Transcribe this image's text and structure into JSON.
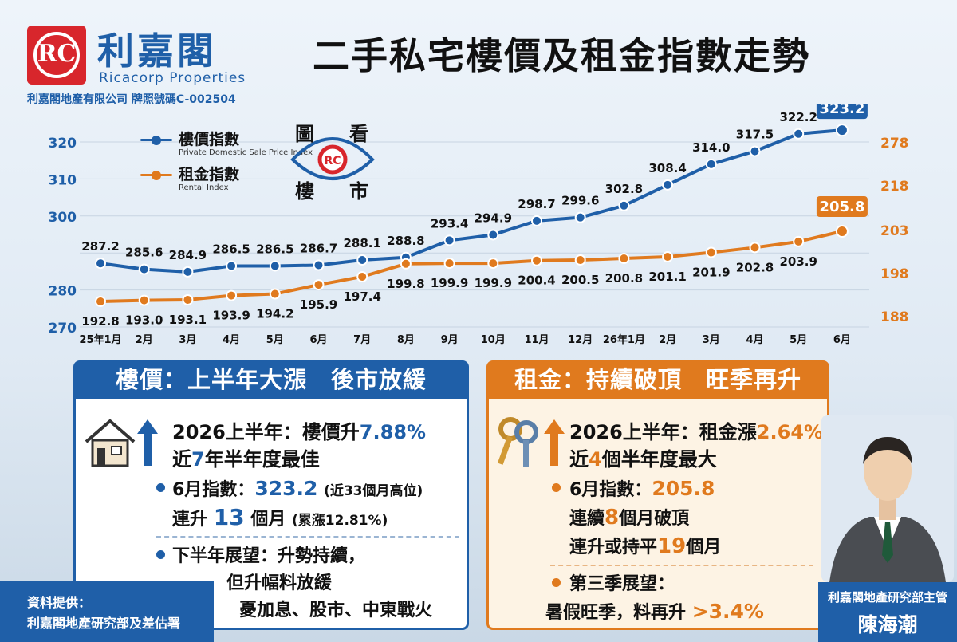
{
  "header": {
    "logo_text": "RC",
    "brand_cn": "利嘉閣",
    "brand_en": "Ricacorp Properties",
    "license": "利嘉閣地產有限公司 牌照號碼C-002504",
    "title": "二手私宅樓價及租金指數走勢"
  },
  "legend": {
    "price_cn": "樓價指數",
    "price_en": "Private Domestic Sale Price Index",
    "rent_cn": "租金指數",
    "rent_en": "Rental Index",
    "eye_chars": [
      "圖",
      "看",
      "樓",
      "市"
    ]
  },
  "colors": {
    "blue": "#1f5fa8",
    "orange": "#e07a1e"
  },
  "chart_data": {
    "type": "line",
    "categories": [
      "25年1月",
      "2月",
      "3月",
      "4月",
      "5月",
      "6月",
      "7月",
      "8月",
      "9月",
      "10月",
      "11月",
      "12月",
      "26年1月",
      "2月",
      "3月",
      "4月",
      "5月",
      "6月"
    ],
    "series": [
      {
        "name": "樓價指數",
        "axis": "left",
        "color": "#1f5fa8",
        "values": [
          287.2,
          285.6,
          284.9,
          286.5,
          286.5,
          286.7,
          288.1,
          288.8,
          293.4,
          294.9,
          298.7,
          299.6,
          302.8,
          308.4,
          314.0,
          317.5,
          322.2,
          323.2
        ]
      },
      {
        "name": "租金指數",
        "axis": "right",
        "color": "#e07a1e",
        "values": [
          192.8,
          193.0,
          193.1,
          193.9,
          194.2,
          195.9,
          197.4,
          199.8,
          199.9,
          199.9,
          200.4,
          200.5,
          200.8,
          201.1,
          201.9,
          202.8,
          203.9,
          205.8
        ]
      }
    ],
    "left_ticks": [
      270,
      280,
      290,
      300,
      310,
      320
    ],
    "left_tick_labels": [
      "270",
      "280",
      "",
      "300",
      "310",
      "320"
    ],
    "right_tick_labels": [
      "188",
      "198",
      "203",
      "218",
      "278"
    ],
    "highlight_last": true
  },
  "price_panel": {
    "header": "樓價：上半年大漲　後市放緩",
    "line1_a": "2026上半年：樓價升",
    "line1_b": "7.88%",
    "line2_a": "近",
    "line2_b": "7",
    "line2_c": "年半年度最佳",
    "b1_l1_a": "6月指數：",
    "b1_l1_b": "323.2",
    "b1_l1_c": "(近33個月高位)",
    "b1_l2_a": "連升",
    "b1_l2_b": "13",
    "b1_l2_c": "個月",
    "b1_l2_d": "(累漲12.81%)",
    "b2_l1": "下半年展望：升勢持續，",
    "b2_l2": "但升幅料放緩",
    "b2_l3": "憂加息、股市、中東戰火"
  },
  "rent_panel": {
    "header": "租金：持續破頂　旺季再升",
    "line1_a": "2026上半年：租金漲",
    "line1_b": "2.64%",
    "line2_a": "近",
    "line2_b": "4",
    "line2_c": "個半年度最大",
    "b1_l1_a": "6月指數：",
    "b1_l1_b": "205.8",
    "b1_l2_a": "連續",
    "b1_l2_b": "8",
    "b1_l2_c": "個月破頂",
    "b1_l3_a": "連升或持平",
    "b1_l3_b": "19",
    "b1_l3_c": "個月",
    "b2_l1": "第三季展望：",
    "b2_l2_a": "暑假旺季，料再升",
    "b2_l2_b": ">3.4%"
  },
  "source": {
    "line1": "資料提供：",
    "line2": "利嘉閣地產研究部及差估署"
  },
  "person": {
    "title": "利嘉閣地產研究部主管",
    "name": "陳海潮"
  }
}
